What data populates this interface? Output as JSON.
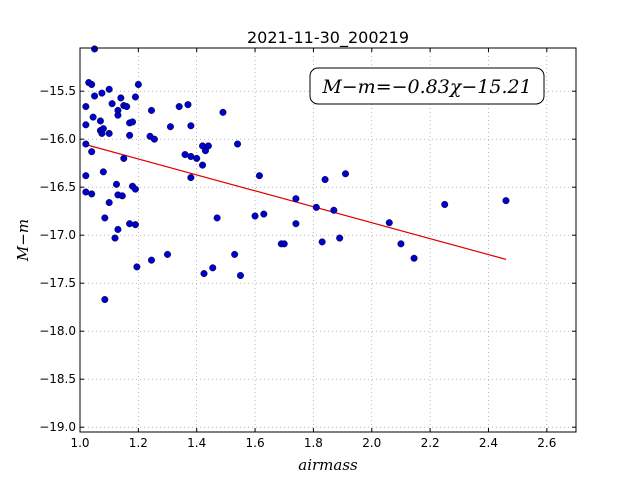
{
  "chart_data": {
    "type": "scatter",
    "title": "2021-11-30_200219",
    "xlabel": "airmass",
    "ylabel": "M−m",
    "xlim": [
      1.0,
      2.7
    ],
    "ylim": [
      -19.05,
      -15.05
    ],
    "x_ticks": [
      1.0,
      1.2,
      1.4,
      1.6,
      1.8,
      2.0,
      2.2,
      2.4,
      2.6
    ],
    "x_tick_labels": [
      "1.0",
      "1.2",
      "1.4",
      "1.6",
      "1.8",
      "2.0",
      "2.2",
      "2.4",
      "2.6"
    ],
    "y_ticks": [
      -15.5,
      -16.0,
      -16.5,
      -17.0,
      -17.5,
      -18.0,
      -18.5,
      -19.0
    ],
    "y_tick_labels": [
      "−15.5",
      "−16.0",
      "−16.5",
      "−17.0",
      "−17.5",
      "−18.0",
      "−18.5",
      "−19.0"
    ],
    "grid": true,
    "annotation": "M−m=−0.83χ−15.21",
    "colors": {
      "points": "#0000cc",
      "fit_line": "#e00000",
      "grid": "#888888"
    },
    "points": [
      [
        1.02,
        -16.05
      ],
      [
        1.02,
        -15.66
      ],
      [
        1.02,
        -15.85
      ],
      [
        1.02,
        -16.38
      ],
      [
        1.02,
        -16.55
      ],
      [
        1.03,
        -15.41
      ],
      [
        1.04,
        -15.43
      ],
      [
        1.04,
        -16.13
      ],
      [
        1.04,
        -16.57
      ],
      [
        1.045,
        -15.77
      ],
      [
        1.05,
        -15.55
      ],
      [
        1.05,
        -15.06
      ],
      [
        1.07,
        -15.81
      ],
      [
        1.07,
        -15.91
      ],
      [
        1.075,
        -15.94
      ],
      [
        1.075,
        -15.52
      ],
      [
        1.08,
        -15.89
      ],
      [
        1.08,
        -16.34
      ],
      [
        1.085,
        -16.82
      ],
      [
        1.085,
        -17.67
      ],
      [
        1.1,
        -15.48
      ],
      [
        1.1,
        -15.94
      ],
      [
        1.1,
        -16.66
      ],
      [
        1.11,
        -15.63
      ],
      [
        1.12,
        -17.03
      ],
      [
        1.125,
        -16.47
      ],
      [
        1.13,
        -15.7
      ],
      [
        1.13,
        -15.75
      ],
      [
        1.13,
        -16.58
      ],
      [
        1.13,
        -16.94
      ],
      [
        1.14,
        -15.57
      ],
      [
        1.145,
        -16.59
      ],
      [
        1.15,
        -15.65
      ],
      [
        1.15,
        -16.2
      ],
      [
        1.16,
        -15.66
      ],
      [
        1.17,
        -15.83
      ],
      [
        1.17,
        -15.96
      ],
      [
        1.17,
        -16.88
      ],
      [
        1.18,
        -15.82
      ],
      [
        1.18,
        -16.49
      ],
      [
        1.19,
        -16.52
      ],
      [
        1.19,
        -16.89
      ],
      [
        1.19,
        -15.56
      ],
      [
        1.195,
        -17.33
      ],
      [
        1.2,
        -15.43
      ],
      [
        1.24,
        -15.97
      ],
      [
        1.245,
        -15.7
      ],
      [
        1.245,
        -17.26
      ],
      [
        1.255,
        -16.0
      ],
      [
        1.3,
        -17.2
      ],
      [
        1.31,
        -15.87
      ],
      [
        1.34,
        -15.66
      ],
      [
        1.36,
        -16.16
      ],
      [
        1.37,
        -15.64
      ],
      [
        1.38,
        -15.86
      ],
      [
        1.38,
        -16.18
      ],
      [
        1.38,
        -16.4
      ],
      [
        1.4,
        -16.2
      ],
      [
        1.42,
        -16.27
      ],
      [
        1.42,
        -16.07
      ],
      [
        1.425,
        -17.4
      ],
      [
        1.43,
        -16.12
      ],
      [
        1.44,
        -16.07
      ],
      [
        1.455,
        -17.34
      ],
      [
        1.47,
        -16.82
      ],
      [
        1.49,
        -15.72
      ],
      [
        1.53,
        -17.2
      ],
      [
        1.54,
        -16.05
      ],
      [
        1.55,
        -17.42
      ],
      [
        1.6,
        -16.8
      ],
      [
        1.615,
        -16.38
      ],
      [
        1.63,
        -16.78
      ],
      [
        1.69,
        -17.09
      ],
      [
        1.7,
        -17.09
      ],
      [
        1.74,
        -16.62
      ],
      [
        1.74,
        -16.88
      ],
      [
        1.81,
        -16.71
      ],
      [
        1.83,
        -17.07
      ],
      [
        1.84,
        -16.42
      ],
      [
        1.87,
        -16.74
      ],
      [
        1.89,
        -17.03
      ],
      [
        1.91,
        -16.36
      ],
      [
        2.06,
        -16.87
      ],
      [
        2.1,
        -17.09
      ],
      [
        2.145,
        -17.24
      ],
      [
        2.25,
        -16.68
      ],
      [
        2.46,
        -16.64
      ]
    ],
    "fit_line": {
      "slope": -0.83,
      "intercept": -15.21,
      "x_range": [
        1.02,
        2.46
      ]
    }
  }
}
